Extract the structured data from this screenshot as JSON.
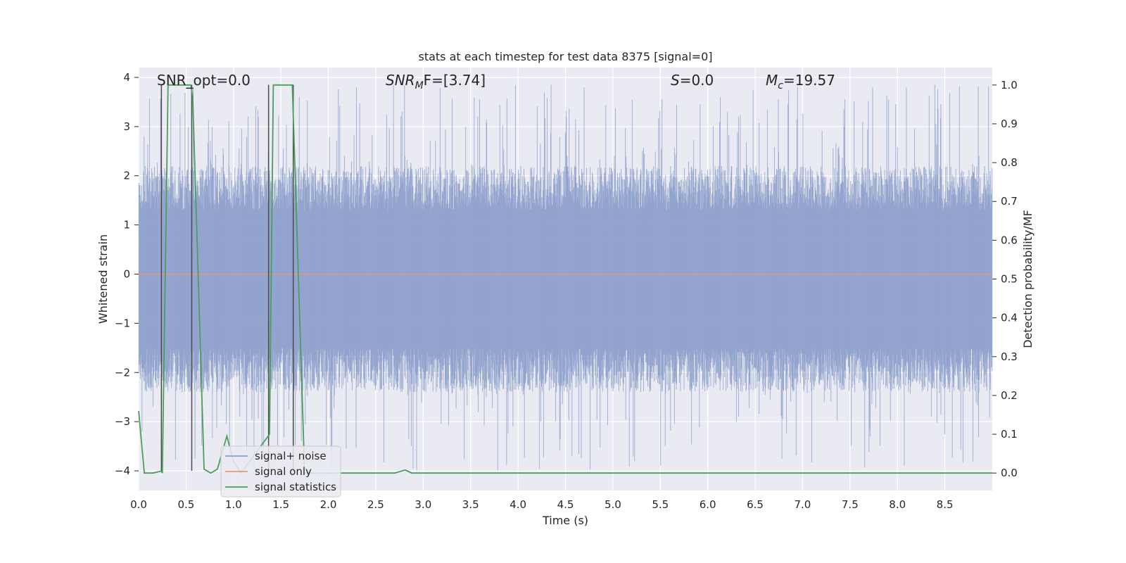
{
  "chart_data": {
    "type": "line",
    "title": "stats at each timestep for test data 8375 [signal=0]",
    "xlabel": "Time (s)",
    "ylabel": "Whitened strain",
    "ylabel_right": "Detection probability/MF",
    "xlim": [
      0,
      9.0
    ],
    "ylim": [
      -4.4,
      4.2
    ],
    "ylim_right": [
      -0.045,
      1.045
    ],
    "x_ticks": [
      0.0,
      0.5,
      1.0,
      1.5,
      2.0,
      2.5,
      3.0,
      3.5,
      4.0,
      4.5,
      5.0,
      5.5,
      6.0,
      6.5,
      7.0,
      7.5,
      8.0,
      8.5
    ],
    "x_tick_labels": [
      "0.0",
      "0.5",
      "1.0",
      "1.5",
      "2.0",
      "2.5",
      "3.0",
      "3.5",
      "4.0",
      "4.5",
      "5.0",
      "5.5",
      "6.0",
      "6.5",
      "7.0",
      "7.5",
      "8.0",
      "8.5"
    ],
    "y_ticks": [
      4,
      3,
      2,
      1,
      0,
      -1,
      -2,
      -3,
      -4
    ],
    "y_tick_labels": [
      "4",
      "3",
      "2",
      "1",
      "0",
      "−1",
      "−2",
      "−3",
      "−4"
    ],
    "y_right_ticks": [
      1.0,
      0.9,
      0.8,
      0.7,
      0.6,
      0.5,
      0.4,
      0.3,
      0.2,
      0.1,
      0.0
    ],
    "y_right_tick_labels": [
      "1.0",
      "0.9",
      "0.8",
      "0.7",
      "0.6",
      "0.5",
      "0.4",
      "0.3",
      "0.2",
      "0.1",
      "0.0"
    ],
    "grid": true,
    "legend_position": "lower-left",
    "annotations": {
      "snr_opt": "SNR_opt=0.0",
      "snr_mf_main": "SNR",
      "snr_mf_sub": "M",
      "snr_mf_rest": "F=[3.74]",
      "s_main": "S",
      "s_rest": "=0.0",
      "mc_main": "M",
      "mc_sub": "c",
      "mc_rest": "=19.57"
    },
    "series": [
      {
        "name": "signal+ noise",
        "color": "#8da0cb",
        "note_noise_band_y": [
          -1.8,
          1.6
        ],
        "note_spike_max_y": 3.85,
        "note_spike_min_y": -4.0
      },
      {
        "name": "signal only",
        "color": "#e5977f",
        "x": [
          0.0,
          9.0
        ],
        "y": [
          0.0,
          0.0
        ]
      },
      {
        "name": "signal statistics",
        "color": "#4a9e5c",
        "axis": "right",
        "x": [
          0.0,
          0.06,
          0.15,
          0.24,
          0.25,
          0.31,
          0.55,
          0.57,
          0.69,
          0.76,
          0.83,
          0.93,
          1.0,
          1.08,
          1.38,
          1.42,
          1.62,
          1.75,
          2.0,
          2.7,
          2.81,
          2.88,
          3.0,
          9.0
        ],
        "y": [
          0.16,
          0.0,
          0.0,
          0.005,
          0.0,
          1.0,
          1.0,
          0.97,
          0.01,
          0.0,
          0.01,
          0.095,
          0.03,
          0.0,
          0.1,
          1.0,
          1.0,
          0.0,
          0.0,
          0.0,
          0.008,
          0.0,
          0.0,
          0.0
        ]
      }
    ],
    "vertical_markers_x": [
      0.24,
      0.56,
      1.37,
      1.63
    ],
    "vertical_markers_ymin": -4.0,
    "vertical_markers_ymax": 3.85,
    "h_gridlines_right_extra": [
      0.3,
      0.4,
      0.5,
      0.6,
      0.7
    ]
  },
  "colors": {
    "plot_bg": "#eaeaf2",
    "grid": "#ffffff",
    "noise": "#8da0cb",
    "signal_only": "#e5977f",
    "stats": "#4a9e5c",
    "marker": "#4a4a4a"
  }
}
